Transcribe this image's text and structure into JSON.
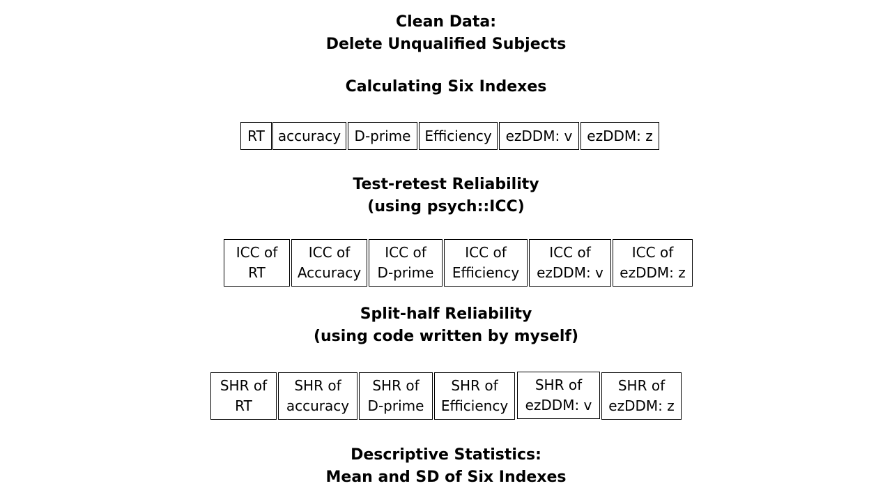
{
  "clean_data": {
    "line1": "Clean Data:",
    "line2": "Delete Unqualified Subjects"
  },
  "calc": {
    "title": "Calculating Six Indexes",
    "indexes": [
      "RT",
      "accuracy",
      "D-prime",
      "Efficiency",
      "ezDDM: v",
      "ezDDM: z"
    ]
  },
  "test_retest": {
    "line1": "Test-retest Reliability",
    "line2": "(using psych::ICC)",
    "boxes": [
      {
        "line1": "ICC of",
        "line2": "RT"
      },
      {
        "line1": "ICC of",
        "line2": "Accuracy"
      },
      {
        "line1": "ICC of",
        "line2": "D-prime"
      },
      {
        "line1": "ICC of",
        "line2": "Efficiency"
      },
      {
        "line1": "ICC of",
        "line2": "ezDDM: v"
      },
      {
        "line1": "ICC of",
        "line2": "ezDDM: z"
      }
    ]
  },
  "split_half": {
    "line1": "Split-half Reliability",
    "line2": "(using code written by myself)",
    "boxes": [
      {
        "line1": "SHR of",
        "line2": "RT"
      },
      {
        "line1": "SHR of",
        "line2": "accuracy"
      },
      {
        "line1": "SHR of",
        "line2": "D-prime"
      },
      {
        "line1": "SHR of",
        "line2": "Efficiency"
      },
      {
        "line1": "SHR of",
        "line2": "ezDDM: v"
      },
      {
        "line1": "SHR of",
        "line2": "ezDDM: z"
      }
    ]
  },
  "descriptive": {
    "line1": "Descriptive Statistics:",
    "line2": "Mean and SD of Six Indexes"
  }
}
